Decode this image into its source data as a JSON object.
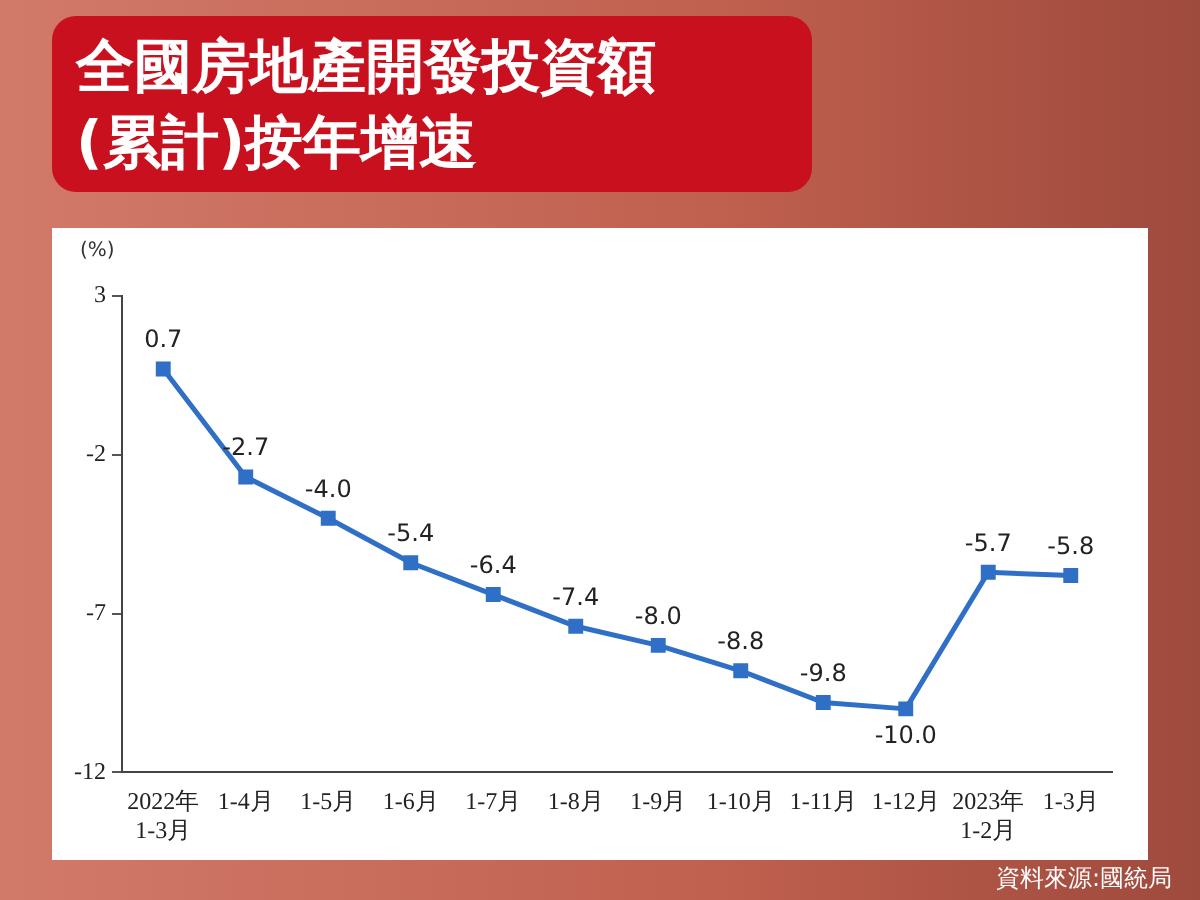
{
  "chart_data": {
    "type": "line",
    "title": "全國房地產開發投資額\n(累計)按年增速",
    "ylabel": "(%)",
    "categories": [
      "2022年\n1-3月",
      "1-4月",
      "1-5月",
      "1-6月",
      "1-7月",
      "1-8月",
      "1-9月",
      "1-10月",
      "1-11月",
      "1-12月",
      "2023年\n1-2月",
      "1-3月"
    ],
    "series": [
      {
        "color": "#2f6fc6",
        "values": [
          0.7,
          -2.7,
          -4.0,
          -5.4,
          -6.4,
          -7.4,
          -8.0,
          -8.8,
          -9.8,
          -10.0,
          -5.7,
          -5.8
        ],
        "value_labels": [
          "0.7",
          "-2.7",
          "-4.0",
          "-5.4",
          "-6.4",
          "-7.4",
          "-8.0",
          "-8.8",
          "-9.8",
          "-10.0",
          "-5.7",
          "-5.8"
        ]
      }
    ],
    "ylim": [
      -12,
      3
    ],
    "yticks": [
      3,
      -2,
      -7,
      -12
    ],
    "grid": false,
    "legend": false,
    "marker": "square",
    "line_style": "solid",
    "annotations": [
      "資料來源:國統局"
    ]
  }
}
